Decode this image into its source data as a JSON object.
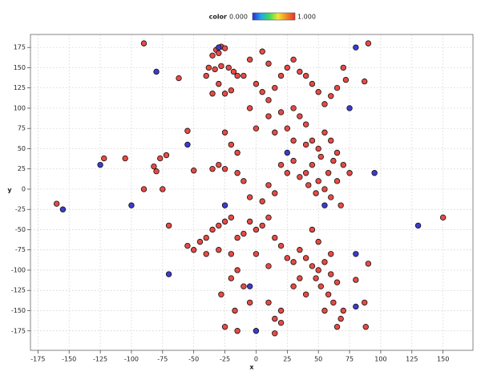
{
  "chart_data": {
    "type": "scatter",
    "x_label": "x",
    "y_label": "y",
    "xlim": [
      -181,
      174
    ],
    "ylim": [
      -199,
      191
    ],
    "xticks": [
      -175,
      -150,
      -125,
      -100,
      -75,
      -50,
      -25,
      0,
      25,
      50,
      75,
      100,
      125,
      150
    ],
    "yticks": [
      -175,
      -150,
      -125,
      -100,
      -75,
      -50,
      -25,
      0,
      25,
      50,
      75,
      100,
      125,
      150,
      175
    ],
    "grid": true,
    "colorbar": {
      "label": "color",
      "ticks": [
        {
          "value": 0,
          "label": "0.000"
        },
        {
          "value": 1,
          "label": "1.000"
        }
      ],
      "colors": [
        "#2b2bd6",
        "#22a6e8",
        "#3ddc5a",
        "#f2e532",
        "#f08a28",
        "#e8302a"
      ]
    },
    "series": [
      {
        "value": 1,
        "color": "#e84a44",
        "x": [
          -160,
          -122,
          -105,
          -90,
          -90,
          -82,
          -80,
          -77,
          -75,
          -72,
          -70,
          -62,
          -55,
          -50,
          90,
          87,
          88,
          150,
          87,
          90,
          80,
          -17,
          -15,
          -25,
          15,
          20,
          10,
          -28,
          -32,
          -28,
          -30,
          -25,
          -35,
          -38,
          -33,
          -28,
          -22,
          -18,
          -15,
          -40,
          -30,
          -25,
          -20,
          -35,
          -10,
          -5,
          5,
          10,
          0,
          5,
          10,
          15,
          20,
          25,
          30,
          35,
          40,
          45,
          50,
          55,
          60,
          65,
          70,
          72,
          30,
          35,
          40,
          20,
          15,
          25,
          30,
          10,
          -5,
          0,
          -25,
          -20,
          -15,
          -30,
          -35,
          -25,
          -15,
          -10,
          -5,
          5,
          10,
          15,
          20,
          25,
          30,
          35,
          40,
          42,
          45,
          48,
          50,
          52,
          55,
          58,
          60,
          62,
          65,
          68,
          70,
          75,
          40,
          45,
          50,
          55,
          60,
          65,
          -55,
          -50,
          -45,
          -40,
          -35,
          -30,
          -25,
          -20,
          -40,
          -30,
          -20,
          -15,
          -10,
          -5,
          0,
          5,
          10,
          15,
          20,
          25,
          30,
          35,
          40,
          45,
          48,
          50,
          52,
          55,
          58,
          60,
          62,
          65,
          68,
          70,
          60,
          50,
          45,
          40,
          35,
          30,
          55,
          65,
          -15,
          -20,
          -10,
          0,
          10,
          15,
          20,
          -5
        ],
        "y": [
          -18,
          38,
          38,
          180,
          0,
          28,
          22,
          38,
          0,
          42,
          -45,
          137,
          72,
          23,
          180,
          133,
          -170,
          -35,
          -140,
          -92,
          -112,
          -150,
          -175,
          -170,
          -178,
          -165,
          -140,
          -130,
          172,
          176,
          168,
          174,
          165,
          150,
          148,
          152,
          150,
          145,
          140,
          140,
          130,
          118,
          122,
          118,
          140,
          160,
          170,
          155,
          130,
          120,
          110,
          125,
          140,
          150,
          160,
          145,
          140,
          130,
          120,
          105,
          115,
          125,
          150,
          135,
          100,
          90,
          80,
          95,
          70,
          75,
          60,
          90,
          100,
          75,
          70,
          55,
          45,
          30,
          25,
          25,
          20,
          10,
          -10,
          -15,
          5,
          -5,
          30,
          20,
          35,
          15,
          20,
          5,
          30,
          -5,
          10,
          40,
          0,
          20,
          -10,
          35,
          10,
          -20,
          30,
          20,
          55,
          60,
          50,
          70,
          60,
          45,
          -70,
          -75,
          -65,
          -60,
          -50,
          -45,
          -40,
          -35,
          -80,
          -75,
          -80,
          -60,
          -55,
          -40,
          -50,
          -45,
          -35,
          -60,
          -70,
          -85,
          -90,
          -75,
          -85,
          -95,
          -110,
          -100,
          -120,
          -90,
          -130,
          -105,
          -140,
          -115,
          -160,
          -150,
          -80,
          -65,
          -50,
          -130,
          -110,
          -120,
          -150,
          -170,
          -100,
          -110,
          -120,
          -80,
          -95,
          -160,
          -150,
          -140
        ]
      },
      {
        "value": 0,
        "color": "#3c3ccf",
        "x": [
          -155,
          -125,
          -100,
          -80,
          -70,
          -55,
          -30,
          -25,
          -5,
          0,
          25,
          55,
          75,
          80,
          80,
          80,
          95,
          130
        ],
        "y": [
          -25,
          30,
          -20,
          145,
          -105,
          55,
          175,
          -20,
          -120,
          -175,
          45,
          -20,
          100,
          175,
          -80,
          -145,
          20,
          -45
        ]
      }
    ]
  }
}
